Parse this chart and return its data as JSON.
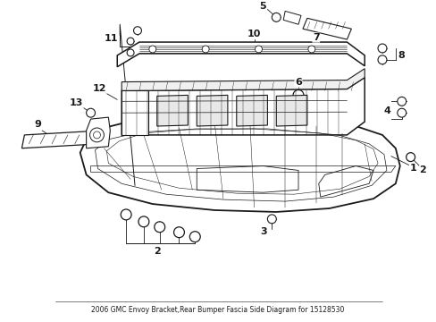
{
  "title": "2006 GMC Envoy Bracket,Rear Bumper Fascia Side Diagram for 15128530",
  "bg_color": "#ffffff",
  "line_color": "#1a1a1a",
  "fig_width": 4.89,
  "fig_height": 3.6,
  "dpi": 100
}
